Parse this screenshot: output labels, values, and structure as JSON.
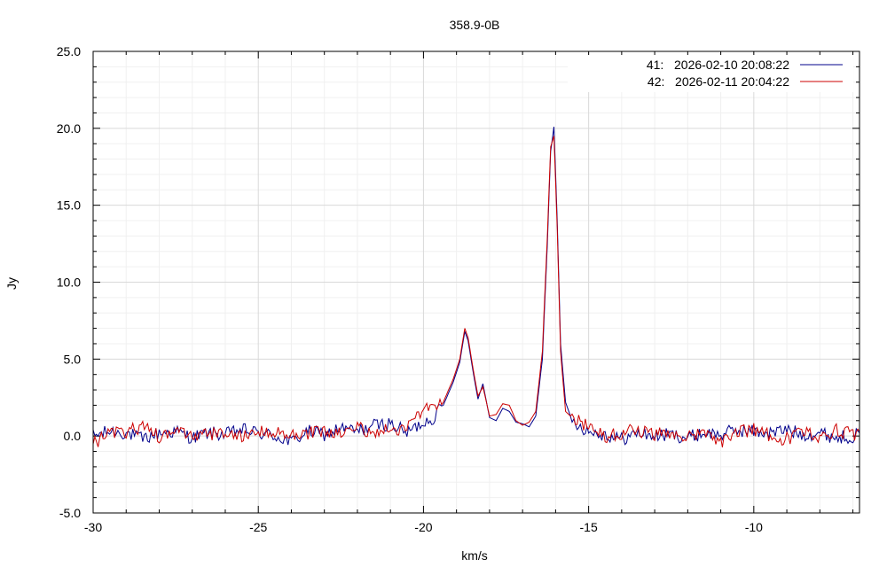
{
  "chart_data": {
    "type": "line",
    "title": "358.9-0B",
    "xlabel": "km/s",
    "ylabel": "Jy",
    "xlim": [
      -30,
      -6.8
    ],
    "ylim": [
      -5,
      25
    ],
    "x_ticks": [
      -30,
      -25,
      -20,
      -15,
      -10
    ],
    "x_tick_labels": [
      "-30",
      "-25",
      "-20",
      "-15",
      "-10"
    ],
    "y_ticks": [
      -5,
      0,
      5,
      10,
      15,
      20,
      25
    ],
    "y_tick_labels": [
      "-5.0",
      "0.0",
      "5.0",
      "10.0",
      "15.0",
      "20.0",
      "25.0"
    ],
    "grid": true,
    "legend_position": "top-right",
    "series": [
      {
        "name": "41:   2026-02-10 20:08:22",
        "color": "#00008b",
        "x": [
          -30.0,
          -29.5,
          -29.0,
          -28.5,
          -28.0,
          -27.5,
          -27.0,
          -26.5,
          -26.0,
          -25.5,
          -25.0,
          -24.5,
          -24.0,
          -23.5,
          -23.0,
          -22.5,
          -22.0,
          -21.5,
          -21.0,
          -20.5,
          -20.0,
          -19.7,
          -19.4,
          -19.1,
          -18.9,
          -18.75,
          -18.65,
          -18.5,
          -18.35,
          -18.2,
          -18.0,
          -17.8,
          -17.6,
          -17.4,
          -17.2,
          -17.0,
          -16.8,
          -16.6,
          -16.4,
          -16.25,
          -16.15,
          -16.05,
          -15.95,
          -15.85,
          -15.7,
          -15.5,
          -15.2,
          -15.0,
          -14.5,
          -14.0,
          -13.5,
          -13.0,
          -12.5,
          -12.0,
          -11.5,
          -11.0,
          -10.5,
          -10.0,
          -9.5,
          -9.0,
          -8.5,
          -8.0,
          -7.5,
          -7.0,
          -6.8
        ],
        "y": [
          0.0,
          0.3,
          0.2,
          -0.2,
          0.2,
          0.3,
          -0.1,
          0.2,
          0.1,
          0.4,
          0.2,
          0.0,
          -0.4,
          0.3,
          0.1,
          0.5,
          0.3,
          0.7,
          0.8,
          0.2,
          0.9,
          1.2,
          2.0,
          3.5,
          4.8,
          6.8,
          6.2,
          4.2,
          2.4,
          3.4,
          1.2,
          1.0,
          1.8,
          1.6,
          0.9,
          0.8,
          0.6,
          1.3,
          5.0,
          12.5,
          18.5,
          20.1,
          14.0,
          6.0,
          2.2,
          1.0,
          0.6,
          0.3,
          0.1,
          -0.2,
          0.2,
          0.0,
          0.1,
          -0.1,
          0.2,
          0.1,
          0.4,
          0.3,
          0.2,
          0.4,
          0.1,
          0.2,
          -0.1,
          0.0,
          0.2
        ]
      },
      {
        "name": "42:   2026-02-11 20:04:22",
        "color": "#cc0000",
        "x": [
          -30.0,
          -29.5,
          -29.0,
          -28.5,
          -28.0,
          -27.5,
          -27.0,
          -26.5,
          -26.0,
          -25.5,
          -25.0,
          -24.5,
          -24.0,
          -23.5,
          -23.0,
          -22.5,
          -22.0,
          -21.5,
          -21.0,
          -20.5,
          -20.0,
          -19.7,
          -19.4,
          -19.1,
          -18.9,
          -18.75,
          -18.65,
          -18.5,
          -18.35,
          -18.2,
          -18.0,
          -17.8,
          -17.6,
          -17.4,
          -17.2,
          -17.0,
          -16.8,
          -16.6,
          -16.4,
          -16.25,
          -16.15,
          -16.05,
          -15.95,
          -15.85,
          -15.7,
          -15.5,
          -15.2,
          -15.0,
          -14.5,
          -14.0,
          -13.5,
          -13.0,
          -12.5,
          -12.0,
          -11.5,
          -11.0,
          -10.5,
          -10.0,
          -9.5,
          -9.0,
          -8.5,
          -8.0,
          -7.5,
          -7.0,
          -6.8
        ],
        "y": [
          -0.5,
          0.1,
          0.3,
          0.6,
          0.0,
          0.2,
          0.1,
          0.0,
          0.3,
          0.0,
          0.4,
          0.2,
          0.0,
          0.2,
          0.3,
          0.1,
          0.6,
          0.2,
          0.4,
          0.6,
          1.8,
          1.6,
          2.2,
          3.7,
          5.0,
          7.0,
          6.4,
          4.4,
          2.6,
          3.2,
          1.3,
          1.4,
          2.1,
          2.0,
          1.0,
          0.7,
          0.9,
          1.6,
          5.5,
          13.0,
          18.8,
          19.5,
          13.5,
          5.5,
          1.6,
          1.2,
          0.9,
          0.5,
          0.0,
          0.2,
          0.4,
          0.1,
          0.2,
          0.0,
          0.1,
          -0.4,
          0.3,
          0.4,
          0.0,
          -0.2,
          0.3,
          0.0,
          0.4,
          0.1,
          0.3
        ]
      }
    ]
  }
}
